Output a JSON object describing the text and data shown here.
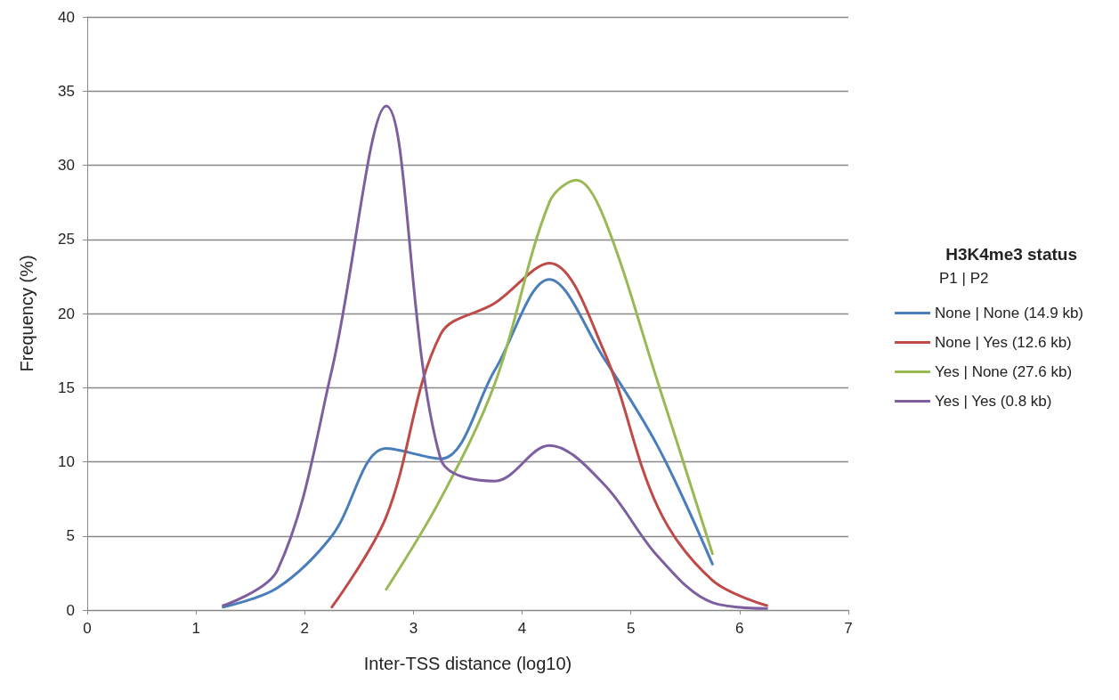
{
  "chart_data": {
    "type": "line",
    "xlabel": "Inter-TSS distance (log10)",
    "ylabel": "Frequency (%)",
    "legend_title": "H3K4me3 status",
    "annotations": [
      "P1 | P2"
    ],
    "xlim": [
      0,
      7
    ],
    "xticks": [
      0,
      1,
      2,
      3,
      4,
      5,
      6,
      7
    ],
    "ylim": [
      0,
      40
    ],
    "yticks": [
      0,
      5,
      10,
      15,
      20,
      25,
      30,
      35,
      40
    ],
    "grid": "y",
    "legend": "right",
    "marker": "none",
    "line_style": "solid",
    "series": [
      {
        "name": "None | None (14.9 kb)",
        "color": "#4a7ebb",
        "x": [
          1.25,
          1.75,
          2.25,
          2.75,
          3.25,
          3.75,
          4.25,
          4.75,
          5.25,
          5.75
        ],
        "values": [
          0.2,
          1.5,
          5,
          10.9,
          10.2,
          16.2,
          22.3,
          17,
          11,
          3.1
        ]
      },
      {
        "name": "None | Yes (12.6 kb)",
        "color": "#be4b48",
        "x": [
          2.25,
          2.75,
          3.25,
          3.75,
          4.25,
          4.75,
          5.25,
          5.75,
          6.25
        ],
        "values": [
          0.2,
          6.3,
          18.6,
          20.7,
          23.4,
          17.5,
          6.9,
          2,
          0.3
        ]
      },
      {
        "name": "Yes | None (27.6 kb)",
        "color": "#98b954",
        "x": [
          2.75,
          3.25,
          3.75,
          4.25,
          4.5,
          4.75,
          5.25,
          5.75
        ],
        "values": [
          1.4,
          7.5,
          15.3,
          27.5,
          29,
          26.5,
          15.3,
          3.8
        ]
      },
      {
        "name": "Yes | Yes (0.8 kb)",
        "color": "#7d5fa0",
        "x": [
          1.25,
          1.75,
          2.25,
          2.75,
          3.25,
          3.75,
          4.25,
          4.75,
          5.25,
          5.75,
          6.25
        ],
        "values": [
          0.3,
          2.7,
          16.2,
          34,
          10.2,
          8.7,
          11.1,
          8.5,
          3.6,
          0.5,
          0.1
        ]
      }
    ]
  }
}
